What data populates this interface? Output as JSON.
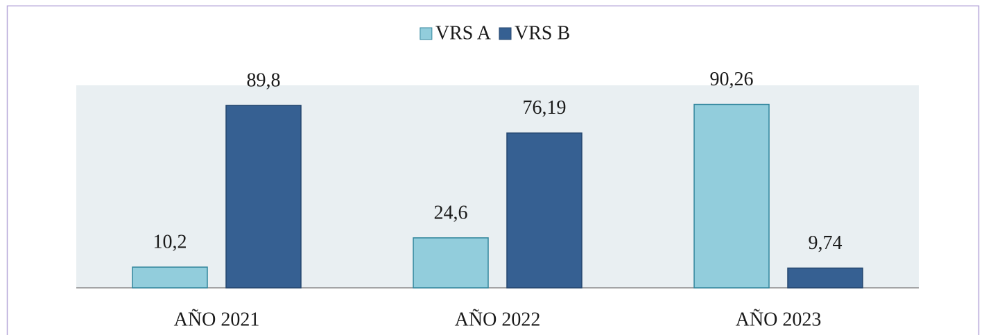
{
  "chart_data": {
    "type": "bar",
    "categories": [
      "AÑO 2021",
      "AÑO 2022",
      "AÑO 2023"
    ],
    "series": [
      {
        "name": "VRS A",
        "color": "#92cddc",
        "values": [
          10.2,
          24.6,
          90.26
        ],
        "value_labels": [
          "10,2",
          "24,6",
          "90,26"
        ]
      },
      {
        "name": "VRS B",
        "color": "#366092",
        "values": [
          89.8,
          76.19,
          9.74
        ],
        "value_labels": [
          "89,8",
          "76,19",
          "9,74"
        ]
      }
    ],
    "legend": "top"
  }
}
